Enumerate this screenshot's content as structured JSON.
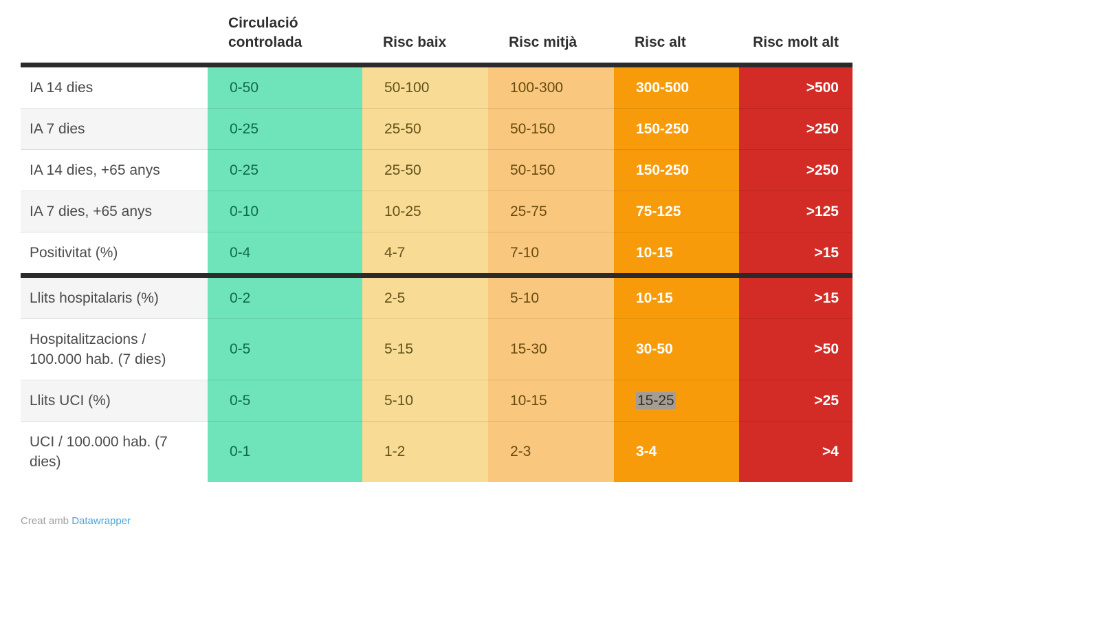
{
  "chart_data": {
    "type": "table",
    "title": "",
    "grid": false,
    "legend_position": "none",
    "columns": [
      {
        "id": "metric",
        "label": "",
        "align": "left",
        "bg": "#ffffff",
        "text": "#4a4a4a",
        "bold": false
      },
      {
        "id": "circulacio-controlada",
        "label": "Circulació controlada",
        "align": "left",
        "bg": "#6fe3b9",
        "text": "#0d6b4d",
        "bold": false
      },
      {
        "id": "risc-baix",
        "label": "Risc baix",
        "align": "left",
        "bg": "#f8dc95",
        "text": "#63511a",
        "bold": false
      },
      {
        "id": "risc-mitja",
        "label": "Risc mitjà",
        "align": "left",
        "bg": "#f9c87e",
        "text": "#674a10",
        "bold": false
      },
      {
        "id": "risc-alt",
        "label": "Risc alt",
        "align": "left",
        "bg": "#f79b0b",
        "text": "#ffffff",
        "bold": true
      },
      {
        "id": "risc-molt-alt",
        "label": "Risc molt alt",
        "align": "right",
        "bg": "#d32b26",
        "text": "#ffffff",
        "bold": true
      }
    ],
    "sections": [
      {
        "rows": [
          {
            "label": "IA 14 dies",
            "values": [
              "0-50",
              "50-100",
              "100-300",
              "300-500",
              ">500"
            ]
          },
          {
            "label": "IA 7 dies",
            "values": [
              "0-25",
              "25-50",
              "50-150",
              "150-250",
              ">250"
            ]
          },
          {
            "label": "IA 14 dies, +65 anys",
            "values": [
              "0-25",
              "25-50",
              "50-150",
              "150-250",
              ">250"
            ]
          },
          {
            "label": "IA 7 dies, +65 anys",
            "values": [
              "0-10",
              "10-25",
              "25-75",
              "75-125",
              ">125"
            ]
          },
          {
            "label": "Positivitat (%)",
            "values": [
              "0-4",
              "4-7",
              "7-10",
              "10-15",
              ">15"
            ]
          }
        ]
      },
      {
        "rows": [
          {
            "label": "Llits hospitalaris (%)",
            "values": [
              "0-2",
              "2-5",
              "5-10",
              "10-15",
              ">15"
            ]
          },
          {
            "label": "Hospitalitzacions / 100.000 hab. (7 dies)",
            "values": [
              "0-5",
              "5-15",
              "15-30",
              "30-50",
              ">50"
            ]
          },
          {
            "label": "Llits UCI (%)",
            "values": [
              "0-5",
              "5-10",
              "10-15",
              "15-25",
              ">25"
            ],
            "highlight_index": 3
          },
          {
            "label": "UCI / 100.000 hab. (7 dies)",
            "values": [
              "0-1",
              "1-2",
              "2-3",
              "3-4",
              ">4"
            ]
          }
        ]
      }
    ],
    "highlight_style": {
      "bg": "#a59d92",
      "text": "#332f29"
    },
    "divider_color": "#2b2b2b"
  },
  "footer": {
    "prefix": "Creat amb",
    "link_label": "Datawrapper",
    "link_color": "#4ba5d9"
  }
}
